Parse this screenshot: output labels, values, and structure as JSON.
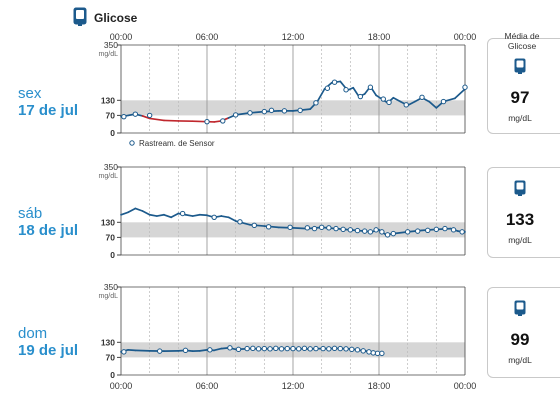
{
  "header": {
    "icon": "glucose-sensor-icon",
    "title": "Glicose"
  },
  "colors": {
    "series": "#1c5a8c",
    "low": "#c0272d",
    "range_band": "#d6d6d6",
    "day_label": "#2a8fcc"
  },
  "legend": {
    "marker_label": "Rastream. de Sensor"
  },
  "average": {
    "heading": "Média de Glicose",
    "unit": "mg/dL"
  },
  "days": [
    {
      "weekday": "sex",
      "date": "17 de jul",
      "average_value": "97"
    },
    {
      "weekday": "sáb",
      "date": "18 de jul",
      "average_value": "133"
    },
    {
      "weekday": "dom",
      "date": "19 de jul",
      "average_value": "99"
    }
  ],
  "chart_data": {
    "type": "line",
    "x_unit": "hours",
    "x_tick_labels": [
      "00:00",
      "06:00",
      "12:00",
      "18:00",
      "00:00"
    ],
    "y_axis": {
      "max_label": "350",
      "unit": "mg/dL",
      "ticks": [
        "130",
        "70",
        "0"
      ]
    },
    "ylim": [
      0,
      350
    ],
    "target_range": [
      70,
      130
    ],
    "low_threshold": 70,
    "panels": [
      {
        "day": "sex 17 de jul",
        "line": [
          [
            0,
            65
          ],
          [
            1,
            75
          ],
          [
            1.5,
            68
          ],
          [
            2,
            58
          ],
          [
            3,
            50
          ],
          [
            4,
            48
          ],
          [
            5,
            47
          ],
          [
            6,
            45
          ],
          [
            6.5,
            44
          ],
          [
            7,
            48
          ],
          [
            7.5,
            60
          ],
          [
            8,
            72
          ],
          [
            9,
            80
          ],
          [
            10,
            85
          ],
          [
            11,
            88
          ],
          [
            12,
            88
          ],
          [
            12.7,
            92
          ],
          [
            13.2,
            95
          ],
          [
            13.7,
            125
          ],
          [
            14.2,
            175
          ],
          [
            14.7,
            200
          ],
          [
            15.3,
            205
          ],
          [
            15.8,
            170
          ],
          [
            16.2,
            180
          ],
          [
            16.6,
            145
          ],
          [
            17,
            155
          ],
          [
            17.4,
            185
          ],
          [
            17.8,
            150
          ],
          [
            18.2,
            135
          ],
          [
            18.6,
            120
          ],
          [
            19,
            140
          ],
          [
            19.5,
            125
          ],
          [
            20,
            110
          ],
          [
            20.5,
            125
          ],
          [
            21,
            140
          ],
          [
            21.5,
            125
          ],
          [
            22,
            100
          ],
          [
            22.5,
            125
          ],
          [
            23.3,
            138
          ],
          [
            24,
            175
          ]
        ],
        "points": [
          [
            0.2,
            65
          ],
          [
            1,
            75
          ],
          [
            2,
            70
          ],
          [
            6,
            45
          ],
          [
            7.1,
            48
          ],
          [
            8,
            72
          ],
          [
            9,
            80
          ],
          [
            10,
            85
          ],
          [
            10.5,
            90
          ],
          [
            11.4,
            88
          ],
          [
            12.5,
            90
          ],
          [
            13.6,
            120
          ],
          [
            14.4,
            178
          ],
          [
            14.9,
            202
          ],
          [
            15.7,
            172
          ],
          [
            16.7,
            145
          ],
          [
            17.4,
            182
          ],
          [
            18.3,
            135
          ],
          [
            18.7,
            122
          ],
          [
            19.9,
            112
          ],
          [
            21,
            142
          ],
          [
            22.5,
            125
          ],
          [
            24,
            182
          ]
        ]
      },
      {
        "day": "sáb 18 de jul",
        "line": [
          [
            0,
            160
          ],
          [
            0.5,
            170
          ],
          [
            1,
            185
          ],
          [
            1.5,
            175
          ],
          [
            2,
            160
          ],
          [
            2.5,
            155
          ],
          [
            3,
            160
          ],
          [
            3.5,
            150
          ],
          [
            4,
            165
          ],
          [
            4.5,
            160
          ],
          [
            5,
            155
          ],
          [
            5.5,
            160
          ],
          [
            6,
            158
          ],
          [
            6.5,
            150
          ],
          [
            7,
            155
          ],
          [
            7.5,
            150
          ],
          [
            8,
            135
          ],
          [
            9,
            120
          ],
          [
            10,
            115
          ],
          [
            11,
            110
          ],
          [
            12,
            108
          ],
          [
            13,
            105
          ],
          [
            14,
            110
          ],
          [
            15,
            105
          ],
          [
            16,
            100
          ],
          [
            17,
            95
          ],
          [
            17.5,
            92
          ],
          [
            18,
            100
          ],
          [
            18.5,
            80
          ],
          [
            19,
            85
          ],
          [
            20,
            92
          ],
          [
            21,
            98
          ],
          [
            22,
            102
          ],
          [
            23,
            105
          ],
          [
            23.5,
            95
          ],
          [
            24,
            92
          ]
        ],
        "points": [
          [
            4.3,
            165
          ],
          [
            6.5,
            150
          ],
          [
            8.3,
            132
          ],
          [
            9.3,
            118
          ],
          [
            10.3,
            112
          ],
          [
            11.8,
            110
          ],
          [
            13,
            108
          ],
          [
            13.5,
            105
          ],
          [
            14,
            110
          ],
          [
            14.5,
            108
          ],
          [
            15,
            105
          ],
          [
            15.5,
            102
          ],
          [
            16,
            100
          ],
          [
            16.5,
            97
          ],
          [
            17,
            95
          ],
          [
            17.4,
            92
          ],
          [
            17.8,
            100
          ],
          [
            18.2,
            92
          ],
          [
            18.6,
            80
          ],
          [
            19,
            85
          ],
          [
            20,
            92
          ],
          [
            20.7,
            95
          ],
          [
            21.4,
            98
          ],
          [
            22,
            102
          ],
          [
            22.6,
            105
          ],
          [
            23.2,
            100
          ],
          [
            23.8,
            92
          ]
        ]
      },
      {
        "day": "dom 19 de jul",
        "line": [
          [
            0,
            92
          ],
          [
            0.5,
            100
          ],
          [
            1,
            98
          ],
          [
            2,
            96
          ],
          [
            3,
            95
          ],
          [
            4,
            96
          ],
          [
            4.5,
            98
          ],
          [
            5,
            95
          ],
          [
            5.5,
            96
          ],
          [
            6,
            100
          ],
          [
            6.5,
            98
          ],
          [
            7,
            105
          ],
          [
            7.5,
            108
          ],
          [
            8,
            102
          ],
          [
            9,
            105
          ],
          [
            10,
            104
          ],
          [
            11,
            106
          ],
          [
            12,
            105
          ],
          [
            13,
            104
          ],
          [
            14,
            105
          ],
          [
            15,
            106
          ],
          [
            16,
            104
          ],
          [
            16.5,
            100
          ],
          [
            17,
            96
          ],
          [
            17.5,
            92
          ],
          [
            18,
            88
          ]
        ],
        "points": [
          [
            0.2,
            92
          ],
          [
            2.7,
            95
          ],
          [
            4.5,
            98
          ],
          [
            6.2,
            100
          ],
          [
            7.6,
            108
          ],
          [
            8.2,
            102
          ],
          [
            8.8,
            105
          ],
          [
            9.2,
            106
          ],
          [
            9.6,
            104
          ],
          [
            10,
            105
          ],
          [
            10.4,
            104
          ],
          [
            10.8,
            106
          ],
          [
            11.2,
            104
          ],
          [
            11.6,
            105
          ],
          [
            12,
            105
          ],
          [
            12.4,
            104
          ],
          [
            12.8,
            106
          ],
          [
            13.2,
            104
          ],
          [
            13.6,
            105
          ],
          [
            14.1,
            105
          ],
          [
            14.5,
            104
          ],
          [
            14.9,
            106
          ],
          [
            15.3,
            105
          ],
          [
            15.7,
            104
          ],
          [
            16.1,
            102
          ],
          [
            16.5,
            100
          ],
          [
            16.9,
            96
          ],
          [
            17.3,
            92
          ],
          [
            17.6,
            88
          ],
          [
            17.9,
            86
          ],
          [
            18.2,
            86
          ]
        ]
      }
    ]
  }
}
